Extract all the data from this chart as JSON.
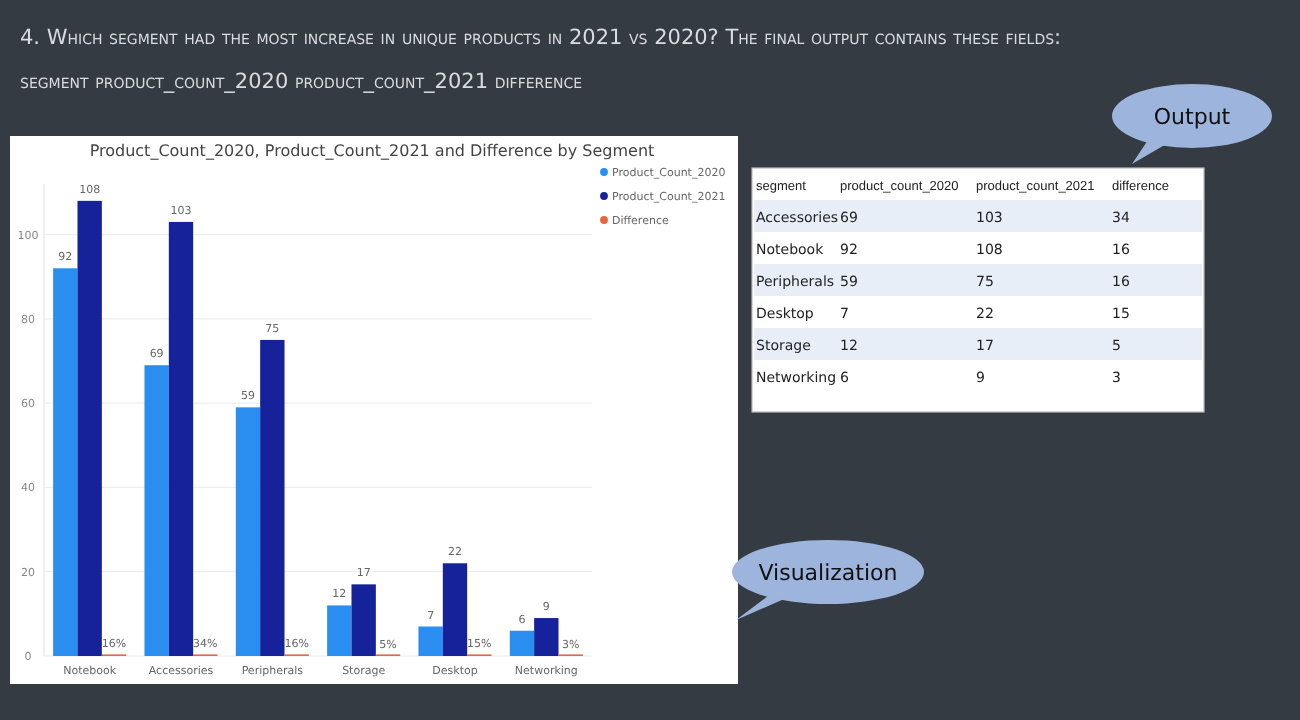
{
  "chart_data": [
    {
      "type": "bar",
      "title": "Product_Count_2020, Product_Count_2021 and Difference by Segment",
      "categories": [
        "Notebook",
        "Accessories",
        "Peripherals",
        "Storage",
        "Desktop",
        "Networking"
      ],
      "series": [
        {
          "name": "Product_Count_2020",
          "color": "#2a8ef0",
          "values": [
            92,
            69,
            59,
            12,
            7,
            6
          ],
          "value_labels": [
            "92",
            "69",
            "59",
            "12",
            "7",
            "6"
          ]
        },
        {
          "name": "Product_Count_2021",
          "color": "#16229a",
          "values": [
            108,
            103,
            75,
            17,
            22,
            9
          ],
          "value_labels": [
            "108",
            "103",
            "75",
            "17",
            "22",
            "9"
          ]
        },
        {
          "name": "Difference",
          "color": "#e8663d",
          "values": [
            0.16,
            0.34,
            0.16,
            0.05,
            0.15,
            0.03
          ],
          "value_labels": [
            "16%",
            "34%",
            "16%",
            "5%",
            "15%",
            "3%"
          ]
        }
      ],
      "ylim": [
        0,
        112
      ],
      "yticks": [
        0,
        20,
        40,
        60,
        80,
        100
      ],
      "grid": "y",
      "legend": "top right",
      "marker": "circle",
      "annotations": [
        "4. Which segment had the most increase in unique products in 2021 vs 2020? The final output contains these fields:",
        "segment product_count_2020 product_count_2021 difference",
        "Visualization"
      ]
    },
    {
      "type": "other",
      "categories": [
        "segment",
        "product_count_2020",
        "product_count_2021",
        "difference"
      ],
      "y_categories": [
        "Accessories",
        "Notebook",
        "Peripherals",
        "Desktop",
        "Storage",
        "Networking"
      ],
      "cell_labels": [
        [
          "69",
          "103",
          "34"
        ],
        [
          "92",
          "108",
          "16"
        ],
        [
          "59",
          "75",
          "16"
        ],
        [
          "7",
          "22",
          "15"
        ],
        [
          "12",
          "17",
          "5"
        ],
        [
          "6",
          "9",
          "3"
        ]
      ],
      "annotations": [
        "Output"
      ]
    }
  ]
}
